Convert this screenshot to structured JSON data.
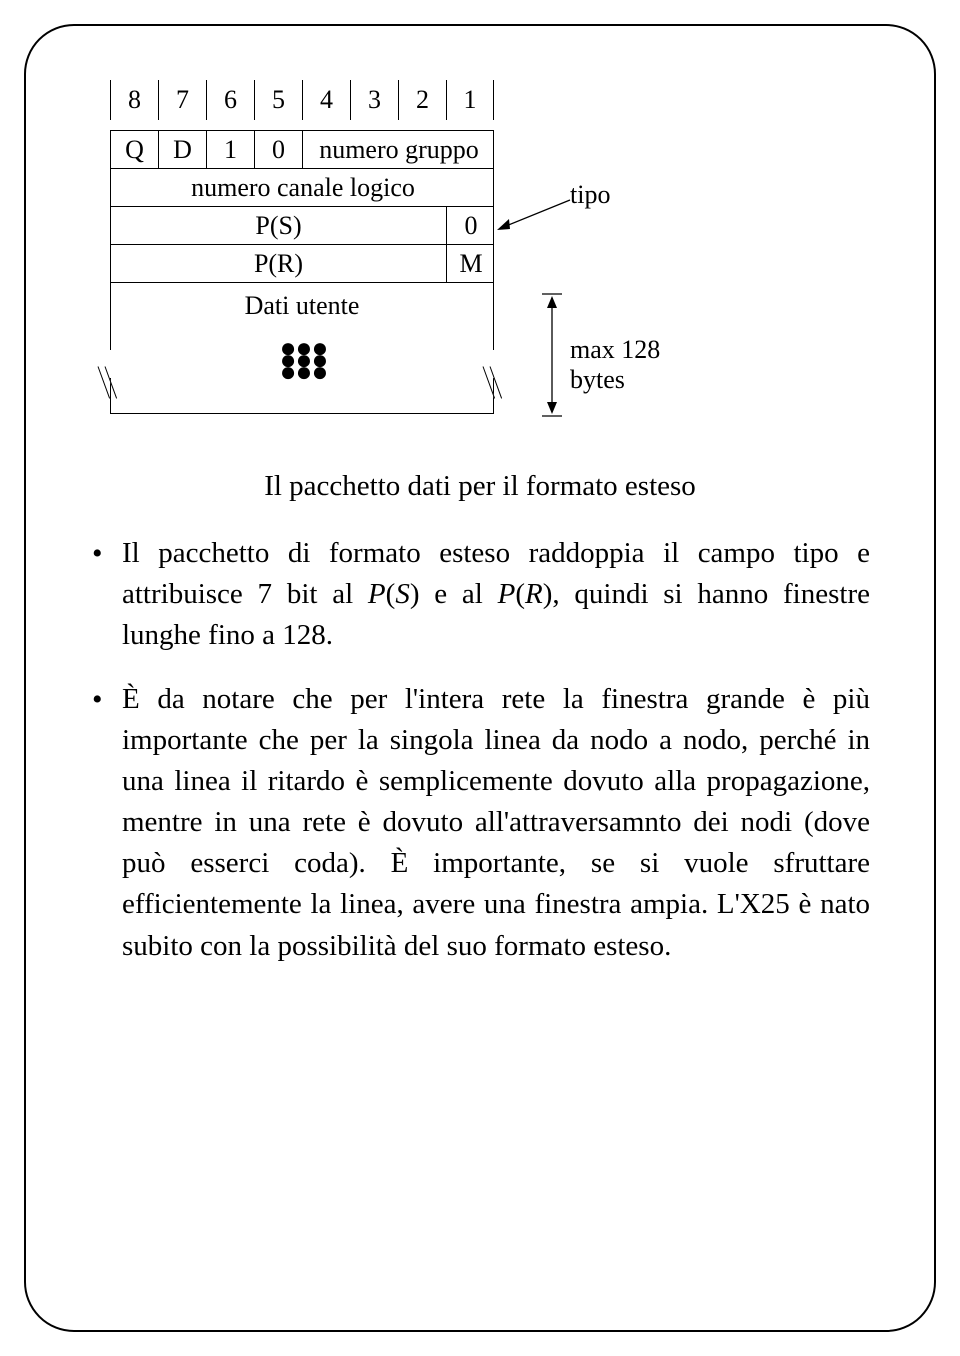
{
  "diagram": {
    "bit_labels": [
      "8",
      "7",
      "6",
      "5",
      "4",
      "3",
      "2",
      "1"
    ],
    "rows": {
      "r1": {
        "Q": "Q",
        "D": "D",
        "one": "1",
        "zero": "0",
        "group": "numero gruppo"
      },
      "r2": {
        "logic": "numero canale logico"
      },
      "r3": {
        "ps": "P(S)",
        "zero": "0"
      },
      "r4": {
        "pr": "P(R)",
        "m": "M"
      },
      "data": {
        "label": "Dati utente"
      }
    },
    "annot": {
      "tipo": "tipo",
      "max": "max 128 bytes"
    }
  },
  "caption": "Il pacchetto dati per il formato esteso",
  "bullets": [
    "Il pacchetto di formato esteso raddoppia il campo tipo e attribuisce 7 bit al <span class=\"math\">P</span>(<span class=\"math\">S</span>) e al <span class=\"math\">P</span>(<span class=\"math\">R</span>), quindi si hanno finestre lunghe fino a 128.",
    "È da notare che per l'intera rete la finestra grande è più importante che per la singola linea da nodo a nodo, perché in una linea il ritardo è semplicemente dovuto alla propagazione, mentre in una rete è dovuto all'attraversamnto dei nodi (dove può esserci coda). È importante, se si vuole sfruttare efficientemente la linea, avere una finestra ampia. L'X25 è nato subito con la possibilità del suo formato esteso."
  ]
}
